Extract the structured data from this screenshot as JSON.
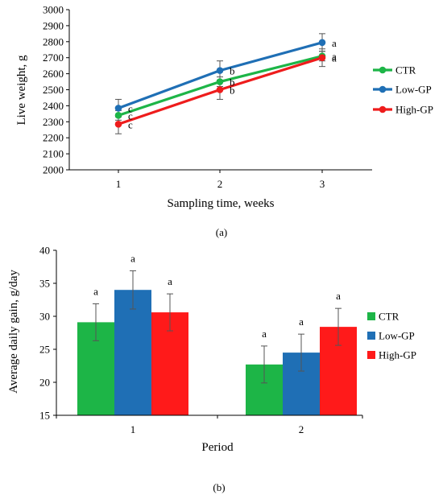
{
  "chart_data": [
    {
      "type": "line",
      "panel_label": "(a)",
      "xlabel": "Sampling time, weeks",
      "ylabel": "Live weight, g",
      "x": [
        1,
        2,
        3
      ],
      "ylim": [
        2000,
        3000
      ],
      "yticks": [
        2000,
        2100,
        2200,
        2300,
        2400,
        2500,
        2600,
        2700,
        2800,
        2900,
        3000
      ],
      "legend_position": "right",
      "grid": false,
      "series": [
        {
          "name": "CTR",
          "color": "#1db547",
          "values": [
            2340,
            2550,
            2710
          ],
          "errors": [
            30,
            30,
            30
          ],
          "letters": [
            "c",
            "b",
            "a"
          ]
        },
        {
          "name": "Low-GP",
          "color": "#1f6fb5",
          "values": [
            2385,
            2620,
            2795
          ],
          "errors": [
            55,
            60,
            55
          ],
          "letters": [
            "c",
            "b",
            "a"
          ]
        },
        {
          "name": "High-GP",
          "color": "#ee1c1c",
          "values": [
            2285,
            2500,
            2700
          ],
          "errors": [
            60,
            60,
            55
          ],
          "letters": [
            "c",
            "b",
            "a"
          ]
        }
      ]
    },
    {
      "type": "bar",
      "panel_label": "(b)",
      "xlabel": "Period",
      "ylabel": "Average daily gain, g/day",
      "categories": [
        "1",
        "2"
      ],
      "ylim": [
        15,
        40
      ],
      "yticks": [
        15,
        20,
        25,
        30,
        35,
        40
      ],
      "legend_position": "right",
      "grid": false,
      "series": [
        {
          "name": "CTR",
          "color": "#1db547",
          "values": [
            29.1,
            22.7
          ],
          "errors": [
            2.8,
            2.8
          ],
          "letters": [
            "a",
            "a"
          ]
        },
        {
          "name": "Low-GP",
          "color": "#1f6fb5",
          "values": [
            34.0,
            24.5
          ],
          "errors": [
            2.9,
            2.8
          ],
          "letters": [
            "a",
            "a"
          ]
        },
        {
          "name": "High-GP",
          "color": "#ff1a1a",
          "values": [
            30.6,
            28.4
          ],
          "errors": [
            2.8,
            2.8
          ],
          "letters": [
            "a",
            "a"
          ]
        }
      ]
    }
  ]
}
